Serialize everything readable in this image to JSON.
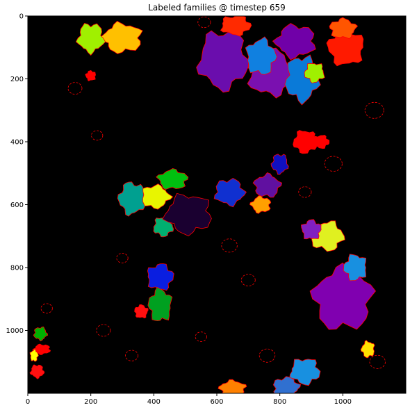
{
  "figure": {
    "title": "Labeled families @ timestep 659"
  },
  "chart_data": {
    "type": "heatmap",
    "title": "Labeled families @ timestep 659",
    "xlabel": "",
    "ylabel": "",
    "xlim": [
      0,
      1200
    ],
    "ylim": [
      1200,
      0
    ],
    "x_ticks": [
      "0",
      "200",
      "400",
      "600",
      "800",
      "1000"
    ],
    "y_ticks": [
      "0",
      "200",
      "400",
      "600",
      "800",
      "1000"
    ],
    "background": "#000000",
    "boundary_color": "#ff0000",
    "grid": false,
    "legend": "none",
    "regions": [
      {
        "color": "#6a0dad",
        "x": 620,
        "y": 140,
        "rx": 75,
        "ry": 90
      },
      {
        "color": "#7a10b0",
        "x": 770,
        "y": 180,
        "rx": 70,
        "ry": 70
      },
      {
        "color": "#8000b0",
        "x": 1000,
        "y": 900,
        "rx": 90,
        "ry": 95
      },
      {
        "color": "#7000a8",
        "x": 850,
        "y": 80,
        "rx": 60,
        "ry": 50
      },
      {
        "color": "#0a7ad8",
        "x": 870,
        "y": 200,
        "rx": 50,
        "ry": 70
      },
      {
        "color": "#1080e0",
        "x": 740,
        "y": 130,
        "rx": 45,
        "ry": 55
      },
      {
        "color": "#ff1a00",
        "x": 1010,
        "y": 100,
        "rx": 55,
        "ry": 55
      },
      {
        "color": "#ff0000",
        "x": 880,
        "y": 400,
        "rx": 35,
        "ry": 35
      },
      {
        "color": "#ff2a00",
        "x": 660,
        "y": 30,
        "rx": 45,
        "ry": 30
      },
      {
        "color": "#ff5500",
        "x": 1000,
        "y": 40,
        "rx": 40,
        "ry": 30
      },
      {
        "color": "#ffc000",
        "x": 300,
        "y": 70,
        "rx": 60,
        "ry": 45
      },
      {
        "color": "#a0f000",
        "x": 200,
        "y": 70,
        "rx": 40,
        "ry": 45
      },
      {
        "color": "#e8f500",
        "x": 400,
        "y": 575,
        "rx": 50,
        "ry": 35
      },
      {
        "color": "#00c010",
        "x": 460,
        "y": 520,
        "rx": 45,
        "ry": 30
      },
      {
        "color": "#00a090",
        "x": 330,
        "y": 580,
        "rx": 40,
        "ry": 50
      },
      {
        "color": "#00b070",
        "x": 430,
        "y": 670,
        "rx": 30,
        "ry": 30
      },
      {
        "color": "#0a1ee0",
        "x": 420,
        "y": 830,
        "rx": 40,
        "ry": 40
      },
      {
        "color": "#00a020",
        "x": 420,
        "y": 920,
        "rx": 35,
        "ry": 50
      },
      {
        "color": "#1a0030",
        "x": 510,
        "y": 630,
        "rx": 70,
        "ry": 60
      },
      {
        "color": "#1030d0",
        "x": 640,
        "y": 560,
        "rx": 45,
        "ry": 40
      },
      {
        "color": "#6010a0",
        "x": 760,
        "y": 540,
        "rx": 40,
        "ry": 35
      },
      {
        "color": "#ffa000",
        "x": 740,
        "y": 600,
        "rx": 30,
        "ry": 25
      },
      {
        "color": "#1010c0",
        "x": 800,
        "y": 470,
        "rx": 25,
        "ry": 30
      },
      {
        "color": "#e0f020",
        "x": 950,
        "y": 700,
        "rx": 50,
        "ry": 45
      },
      {
        "color": "#8020c0",
        "x": 900,
        "y": 680,
        "rx": 30,
        "ry": 30
      },
      {
        "color": "#1890e0",
        "x": 1040,
        "y": 800,
        "rx": 35,
        "ry": 40
      },
      {
        "color": "#1890e0",
        "x": 880,
        "y": 1130,
        "rx": 45,
        "ry": 40
      },
      {
        "color": "#3070d0",
        "x": 820,
        "y": 1180,
        "rx": 40,
        "ry": 30
      },
      {
        "color": "#ff8000",
        "x": 650,
        "y": 1185,
        "rx": 40,
        "ry": 25
      },
      {
        "color": "#ff0000",
        "x": 45,
        "y": 1060,
        "rx": 25,
        "ry": 15
      },
      {
        "color": "#00b000",
        "x": 40,
        "y": 1010,
        "rx": 20,
        "ry": 20
      },
      {
        "color": "#ffff00",
        "x": 20,
        "y": 1080,
        "rx": 12,
        "ry": 18
      },
      {
        "color": "#ff0000",
        "x": 200,
        "y": 190,
        "rx": 15,
        "ry": 15
      },
      {
        "color": "#a0f000",
        "x": 910,
        "y": 180,
        "rx": 30,
        "ry": 30
      },
      {
        "color": "#ff0000",
        "x": 930,
        "y": 400,
        "rx": 25,
        "ry": 20
      },
      {
        "color": "#ff1010",
        "x": 360,
        "y": 940,
        "rx": 20,
        "ry": 20
      },
      {
        "color": "#ffe000",
        "x": 1080,
        "y": 1060,
        "rx": 20,
        "ry": 25
      },
      {
        "color": "#ff1010",
        "x": 30,
        "y": 1130,
        "rx": 20,
        "ry": 20
      }
    ]
  }
}
